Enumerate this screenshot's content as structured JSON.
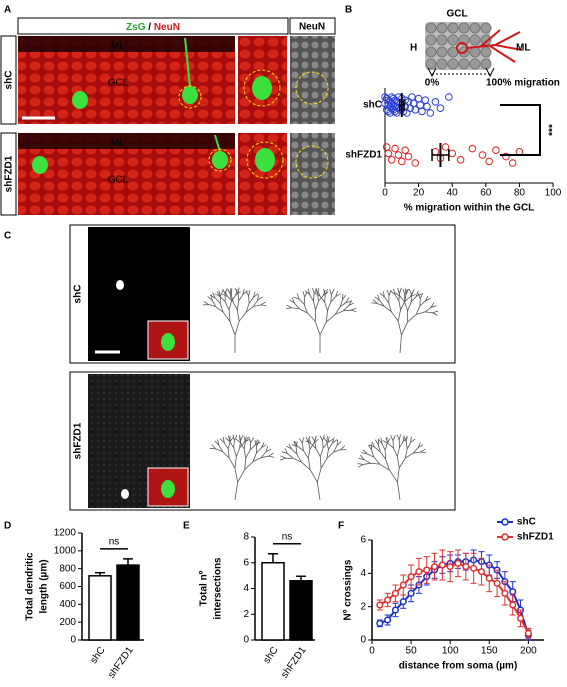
{
  "figure": {
    "panel_labels": [
      "A",
      "B",
      "C",
      "D",
      "E",
      "F"
    ],
    "A": {
      "header": [
        "ZsG",
        "/",
        "NeuN"
      ],
      "header_right": "NeuN",
      "rows": [
        "shC",
        "shFZD1"
      ],
      "layers": [
        "ML",
        "GCL"
      ]
    },
    "B_schematic": {
      "title": "GCL",
      "left": "H",
      "right": "ML",
      "start": "0%",
      "end": "100% migration"
    },
    "C": {
      "rows": [
        "shC",
        "shFZD1"
      ]
    }
  },
  "chart_data": [
    {
      "type": "strip",
      "categories": [
        "shC",
        "shFZD1"
      ],
      "series": [
        {
          "color": "#2a3fd6",
          "values": [
            0,
            0,
            1,
            1,
            2,
            2,
            2,
            3,
            3,
            3,
            4,
            4,
            4,
            5,
            5,
            5,
            6,
            6,
            6,
            7,
            7,
            8,
            8,
            9,
            9,
            10,
            10,
            11,
            12,
            12,
            13,
            14,
            15,
            16,
            17,
            18,
            20,
            21,
            22,
            24,
            25,
            27,
            30,
            33,
            38
          ],
          "mean": 10,
          "sem": 1.3
        },
        {
          "color": "#e02020",
          "values": [
            1,
            2,
            4,
            6,
            8,
            10,
            12,
            14,
            18,
            30,
            33,
            36,
            40,
            45,
            52,
            58,
            62,
            66,
            72,
            76,
            80
          ],
          "mean": 33,
          "sem": 5
        }
      ],
      "xlim": [
        0,
        100
      ],
      "xticks": [
        0,
        20,
        40,
        60,
        80,
        100
      ],
      "xlabel": "% migration within the GCL",
      "annotation": "***"
    },
    {
      "type": "bar",
      "categories": [
        "shC",
        "shFZD1"
      ],
      "values": [
        720,
        840
      ],
      "errors": [
        35,
        70
      ],
      "colors": [
        "#ffffff",
        "#000000"
      ],
      "ylim": [
        0,
        1200
      ],
      "yticks": [
        0,
        200,
        400,
        600,
        800,
        1000,
        1200
      ],
      "ylabel": [
        "Total dendritic",
        "length (µm)"
      ],
      "annotation": "ns"
    },
    {
      "type": "bar",
      "categories": [
        "shC",
        "shFZD1"
      ],
      "values": [
        6,
        4.6
      ],
      "errors": [
        0.7,
        0.35
      ],
      "colors": [
        "#ffffff",
        "#000000"
      ],
      "ylim": [
        0,
        8
      ],
      "yticks": [
        0,
        2,
        4,
        6,
        8
      ],
      "ylabel": [
        "Total nº",
        "intersections"
      ],
      "annotation": "ns"
    },
    {
      "type": "line",
      "x": [
        10,
        20,
        30,
        40,
        50,
        60,
        70,
        80,
        90,
        100,
        110,
        120,
        130,
        140,
        150,
        160,
        170,
        180,
        190,
        200
      ],
      "series": [
        {
          "name": "shC",
          "color": "#1a2fd0",
          "values": [
            1.0,
            1.2,
            1.8,
            2.3,
            2.8,
            3.3,
            3.8,
            4.2,
            4.5,
            4.6,
            4.7,
            4.7,
            4.8,
            4.7,
            4.5,
            4.2,
            3.5,
            2.9,
            1.8,
            0.3
          ],
          "errors": [
            0.2,
            0.3,
            0.4,
            0.4,
            0.5,
            0.5,
            0.5,
            0.5,
            0.5,
            0.5,
            0.4,
            0.5,
            0.6,
            0.6,
            0.6,
            0.5,
            0.6,
            0.6,
            0.6,
            0.3
          ]
        },
        {
          "name": "shFZD1",
          "color": "#e03030",
          "values": [
            2.1,
            2.4,
            2.8,
            3.3,
            3.8,
            4.1,
            4.2,
            4.4,
            4.5,
            4.4,
            4.6,
            4.4,
            4.3,
            4.1,
            3.7,
            3.4,
            2.8,
            2.1,
            1.3,
            0.4
          ],
          "errors": [
            0.3,
            0.4,
            0.5,
            0.6,
            0.7,
            0.8,
            0.8,
            0.8,
            0.9,
            0.9,
            0.8,
            0.8,
            0.9,
            0.8,
            0.8,
            0.8,
            0.7,
            0.6,
            0.5,
            0.3
          ]
        }
      ],
      "xlim": [
        0,
        220
      ],
      "xticks": [
        0,
        50,
        100,
        150,
        200
      ],
      "ylim": [
        0,
        6
      ],
      "yticks": [
        0,
        2,
        4,
        6
      ],
      "xlabel": "distance from soma (µm)",
      "ylabel": "Nº crossings",
      "legend": "upper right"
    }
  ]
}
